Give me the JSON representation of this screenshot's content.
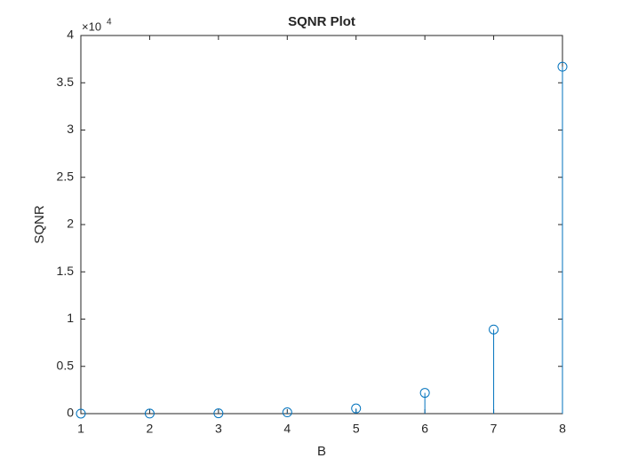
{
  "chart_data": {
    "type": "stem",
    "title": "SQNR Plot",
    "x_label": "B",
    "y_label": "SQNR",
    "y_exponent_base": "×10",
    "y_exponent": "4",
    "x": [
      1,
      2,
      3,
      4,
      5,
      6,
      7,
      8
    ],
    "series": [
      {
        "color": "#0072bd",
        "values": [
          0.0002,
          0.0009,
          0.0035,
          0.014,
          0.055,
          0.22,
          0.89,
          3.67
        ]
      }
    ],
    "xlim": [
      1,
      8
    ],
    "xticks": [
      1,
      2,
      3,
      4,
      5,
      6,
      7,
      8
    ],
    "ylim": [
      0,
      4
    ],
    "yticks": [
      0,
      0.5,
      1,
      1.5,
      2,
      2.5,
      3,
      3.5,
      4
    ]
  }
}
